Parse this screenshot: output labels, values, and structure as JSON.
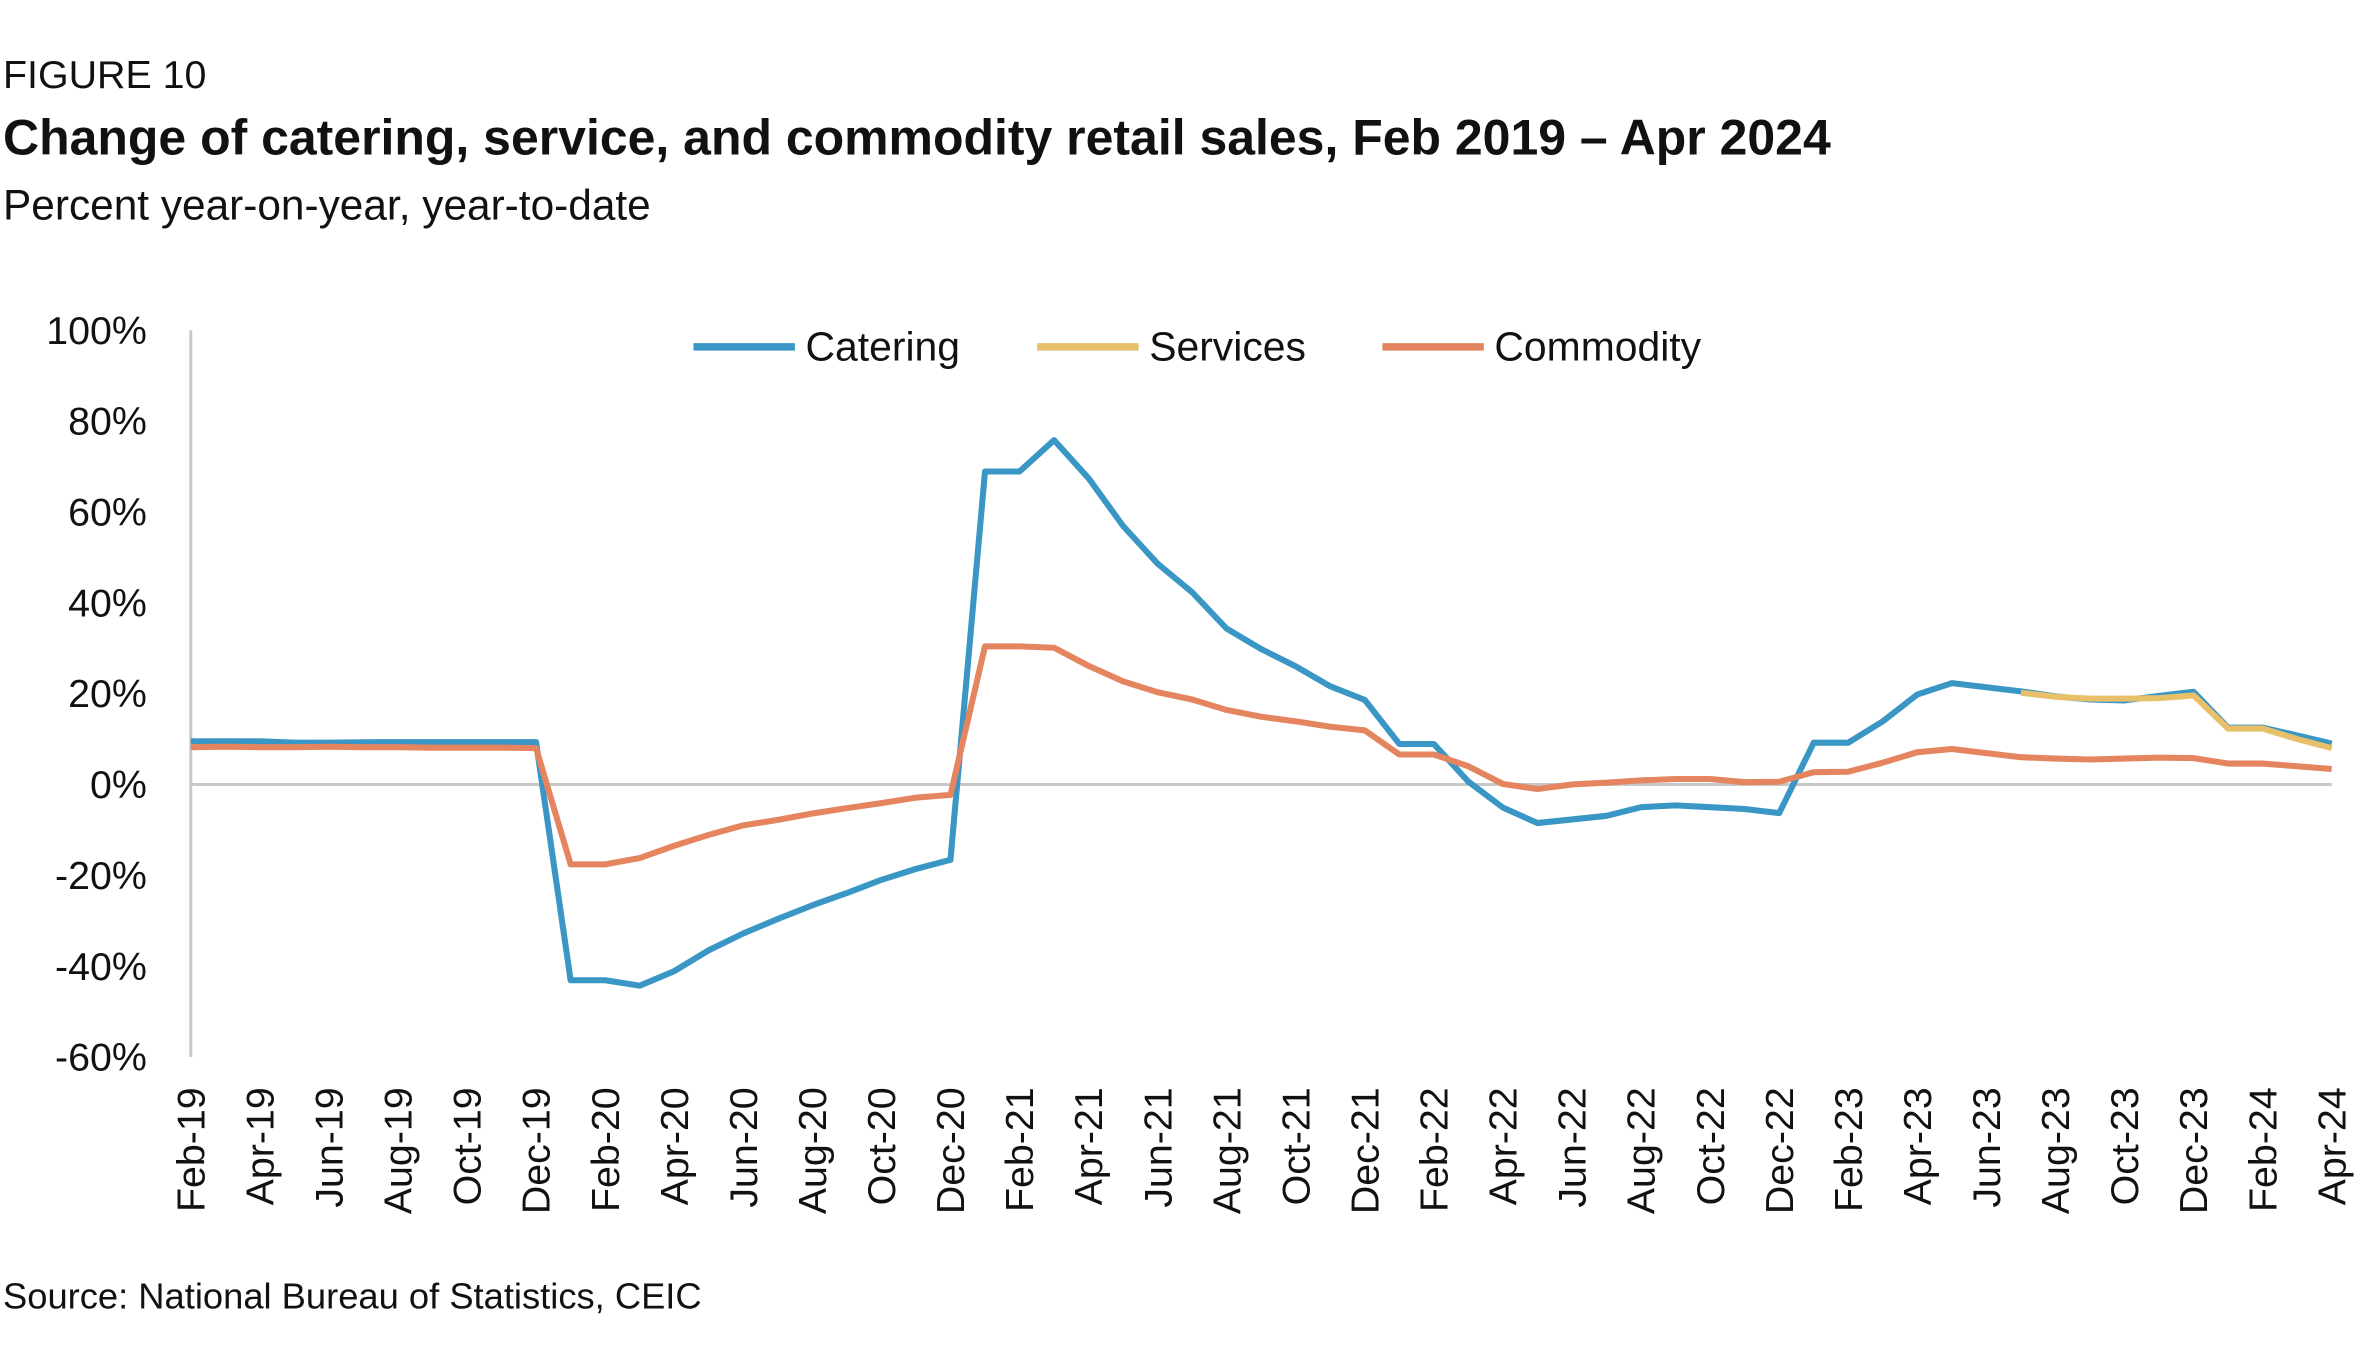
{
  "chart_data": {
    "type": "line",
    "figure_label": "FIGURE 10",
    "title": "Change of catering, service, and commodity retail sales, Feb 2019 – Apr 2024",
    "subtitle": "Percent year-on-year, year-to-date",
    "source": "Source: National Bureau of Statistics, CEIC",
    "categories": [
      "Feb-19",
      null,
      "Apr-19",
      null,
      "Jun-19",
      null,
      "Aug-19",
      null,
      "Oct-19",
      null,
      "Dec-19",
      null,
      "Feb-20",
      null,
      "Apr-20",
      null,
      "Jun-20",
      null,
      "Aug-20",
      null,
      "Oct-20",
      null,
      "Dec-20",
      null,
      "Feb-21",
      null,
      "Apr-21",
      null,
      "Jun-21",
      null,
      "Aug-21",
      null,
      "Oct-21",
      null,
      "Dec-21",
      null,
      "Feb-22",
      null,
      "Apr-22",
      null,
      "Jun-22",
      null,
      "Aug-22",
      null,
      "Oct-22",
      null,
      "Dec-22",
      null,
      "Feb-23",
      null,
      "Apr-23",
      null,
      "Jun-23",
      null,
      "Aug-23",
      null,
      "Oct-23",
      null,
      "Dec-23",
      null,
      "Feb-24",
      null,
      "Apr-24"
    ],
    "series": [
      {
        "name": "Catering",
        "color": "#3a96c4",
        "values": [
          9.5,
          9.5,
          9.5,
          9.2,
          9.2,
          9.3,
          9.3,
          9.3,
          9.3,
          9.3,
          9.3,
          -43.1,
          -43.1,
          -44.3,
          -41.1,
          -36.5,
          -32.8,
          -29.6,
          -26.6,
          -23.9,
          -21.0,
          -18.6,
          -16.6,
          68.9,
          68.9,
          75.8,
          67.4,
          56.9,
          48.6,
          42.3,
          34.3,
          29.8,
          26.0,
          21.6,
          18.6,
          8.9,
          8.9,
          0.6,
          -5.1,
          -8.5,
          -7.7,
          -6.9,
          -5.0,
          -4.6,
          -5.0,
          -5.4,
          -6.3,
          9.2,
          9.2,
          13.9,
          19.8,
          22.3,
          21.4,
          20.5,
          19.4,
          18.7,
          18.5,
          19.5,
          20.4,
          12.5,
          12.5,
          10.8,
          9.0
        ]
      },
      {
        "name": "Services",
        "color": "#e8c06a",
        "values": [
          null,
          null,
          null,
          null,
          null,
          null,
          null,
          null,
          null,
          null,
          null,
          null,
          null,
          null,
          null,
          null,
          null,
          null,
          null,
          null,
          null,
          null,
          null,
          null,
          null,
          null,
          null,
          null,
          null,
          null,
          null,
          null,
          null,
          null,
          null,
          null,
          null,
          null,
          null,
          null,
          null,
          null,
          null,
          null,
          null,
          null,
          null,
          null,
          null,
          null,
          null,
          null,
          null,
          20.2,
          19.3,
          18.9,
          18.9,
          19.0,
          19.6,
          12.3,
          12.3,
          10.0,
          8.0
        ]
      },
      {
        "name": "Commodity",
        "color": "#e5855f",
        "values": [
          8.2,
          8.3,
          8.2,
          8.2,
          8.3,
          8.2,
          8.2,
          8.1,
          8.1,
          8.1,
          8.0,
          -17.6,
          -17.6,
          -16.2,
          -13.5,
          -11.1,
          -9.0,
          -7.8,
          -6.4,
          -5.2,
          -4.1,
          -2.9,
          -2.3,
          30.4,
          30.4,
          30.1,
          26.1,
          22.7,
          20.3,
          18.7,
          16.4,
          14.9,
          13.9,
          12.7,
          11.9,
          6.6,
          6.6,
          4.0,
          0.1,
          -1.0,
          0.0,
          0.4,
          0.9,
          1.2,
          1.2,
          0.5,
          0.6,
          2.7,
          2.8,
          4.8,
          7.1,
          7.8,
          6.9,
          6.0,
          5.7,
          5.5,
          5.7,
          5.9,
          5.8,
          4.6,
          4.6,
          4.0,
          3.4
        ]
      }
    ],
    "ylim": [
      -60,
      100
    ],
    "yticks": [
      {
        "value": -60,
        "label": "-60%"
      },
      {
        "value": -40,
        "label": "-40%"
      },
      {
        "value": -20,
        "label": "-20%"
      },
      {
        "value": 0,
        "label": "0%"
      },
      {
        "value": 20,
        "label": "20%"
      },
      {
        "value": 40,
        "label": "40%"
      },
      {
        "value": 60,
        "label": "60%"
      },
      {
        "value": 80,
        "label": "80%"
      },
      {
        "value": 100,
        "label": "100%"
      }
    ],
    "grid": false,
    "legend": "top"
  }
}
